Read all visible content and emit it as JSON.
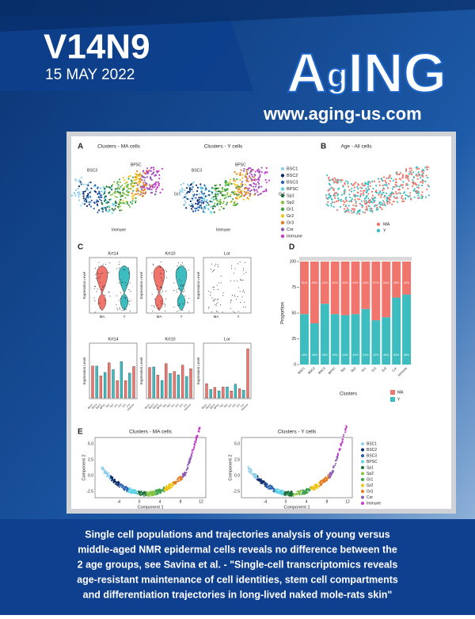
{
  "header": {
    "volume": "V14N9",
    "date": "15 MAY 2022",
    "logo": [
      "A",
      "g",
      "ING"
    ],
    "url": "www.aging-us.com"
  },
  "figure": {
    "panel_a": {
      "label": "A",
      "titles": [
        "Clusters - MA cells",
        "Clusters - Y cells"
      ],
      "cluster_labels": [
        "BSC3",
        "BPSC",
        "Gr1",
        "Immune"
      ],
      "legend": [
        {
          "name": "BSC1",
          "color": "#8fd0ea"
        },
        {
          "name": "BSC2",
          "color": "#0b2a6e"
        },
        {
          "name": "BSC3",
          "color": "#2b62b3"
        },
        {
          "name": "BPSC",
          "color": "#5fd3e6"
        },
        {
          "name": "Sp1",
          "color": "#1c6f3a"
        },
        {
          "name": "Sp2",
          "color": "#86c443"
        },
        {
          "name": "Gr1",
          "color": "#3fa34d"
        },
        {
          "name": "Gr2",
          "color": "#f0c419"
        },
        {
          "name": "Gr3",
          "color": "#e67a1e"
        },
        {
          "name": "Cor",
          "color": "#8e5bb5"
        },
        {
          "name": "Immune",
          "color": "#c43ec8"
        }
      ]
    },
    "panel_b": {
      "label": "B",
      "title": "Age - All cells",
      "legend": [
        {
          "name": "MA",
          "color": "#f0766d"
        },
        {
          "name": "Y",
          "color": "#3dbdbf"
        }
      ]
    },
    "panel_c": {
      "label": "C",
      "genes": [
        "Krt14",
        "Krt10",
        "Lor"
      ],
      "y_label": "Expression Level",
      "groups": [
        "MA",
        "Y"
      ]
    },
    "panel_d": {
      "label": "D",
      "y_label": "Proportion",
      "x_label": "Clusters",
      "ylim": [
        0,
        100
      ],
      "yticks": [
        0,
        25,
        50,
        75,
        100
      ],
      "categories": [
        "BSC1",
        "BSC2",
        "BSC3",
        "BPSC",
        "Sp1",
        "Sp2",
        "Gr1",
        "Gr2",
        "Gr3",
        "Cor",
        "Immune"
      ],
      "series": [
        {
          "name": "Y",
          "color": "#3dbdbf",
          "values": [
            49,
            40,
            59,
            49,
            48,
            49,
            54,
            43,
            46,
            65,
            68
          ],
          "value_labels": [
            "49%",
            "40%",
            "59%",
            "49%",
            "48%",
            "49%",
            "54%",
            "43%",
            "46%",
            "65%",
            "68%"
          ]
        },
        {
          "name": "MA",
          "color": "#f0766d",
          "values": [
            51,
            60,
            41,
            51,
            52,
            51,
            46,
            57,
            54,
            35,
            32
          ],
          "value_labels": [
            "51%",
            "60%",
            "41%",
            "51%",
            "52%",
            "51%",
            "46%",
            "57%",
            "54%",
            "35%",
            "32%"
          ]
        }
      ]
    },
    "panel_e": {
      "label": "E",
      "titles": [
        "Clusters - MA cells",
        "Clusters - Y cells"
      ],
      "x_label": "Component 1",
      "y_label": "Component 2",
      "x_tick_labels": [
        "-4",
        "0",
        "4",
        "8",
        "12"
      ],
      "y_tick_labels": [
        "-2.5",
        "0.0",
        "2.5",
        "5.0"
      ]
    }
  },
  "caption": [
    "Single cell populations and trajectories analysis of young versus",
    "middle-aged NMR epidermal cells reveals no difference between the",
    "2 age groups, see Savina et al. - \"Single-cell transcriptomics reveals",
    "age-resistant maintenance of cell identities, stem cell compartments",
    "and differentiation trajectories in long-lived naked mole-rats skin\""
  ]
}
